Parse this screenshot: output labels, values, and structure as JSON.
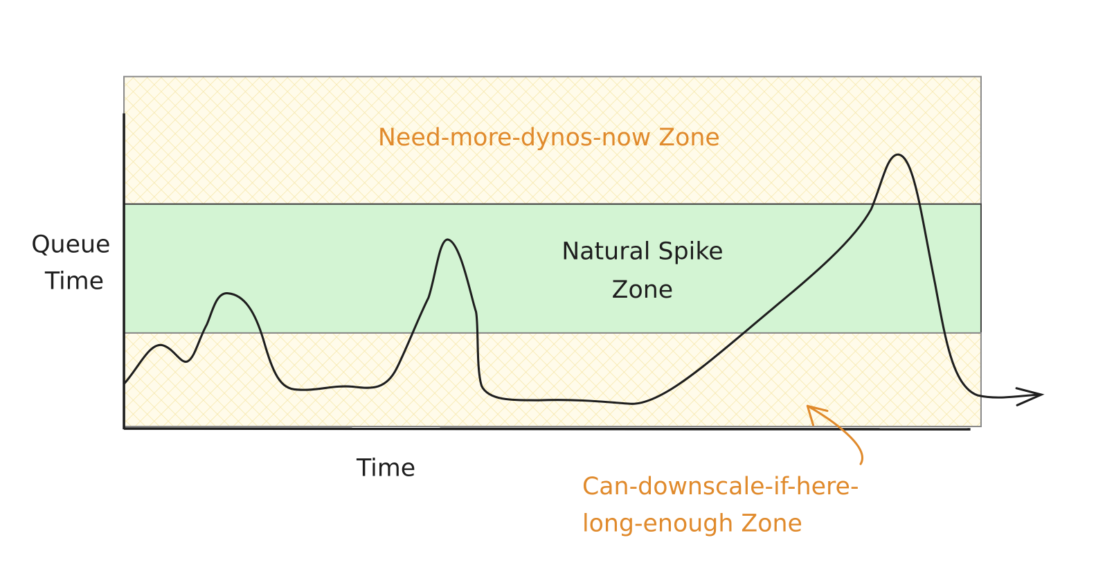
{
  "axes": {
    "y_label": [
      "Queue",
      "Time"
    ],
    "x_label": "Time"
  },
  "zones": [
    {
      "label": [
        "Need-more-dynos-now Zone"
      ]
    },
    {
      "label": [
        "Natural Spike",
        "Zone"
      ]
    },
    {
      "label": [
        "Can-downscale-if-here-",
        "long-enough Zone"
      ]
    }
  ]
}
